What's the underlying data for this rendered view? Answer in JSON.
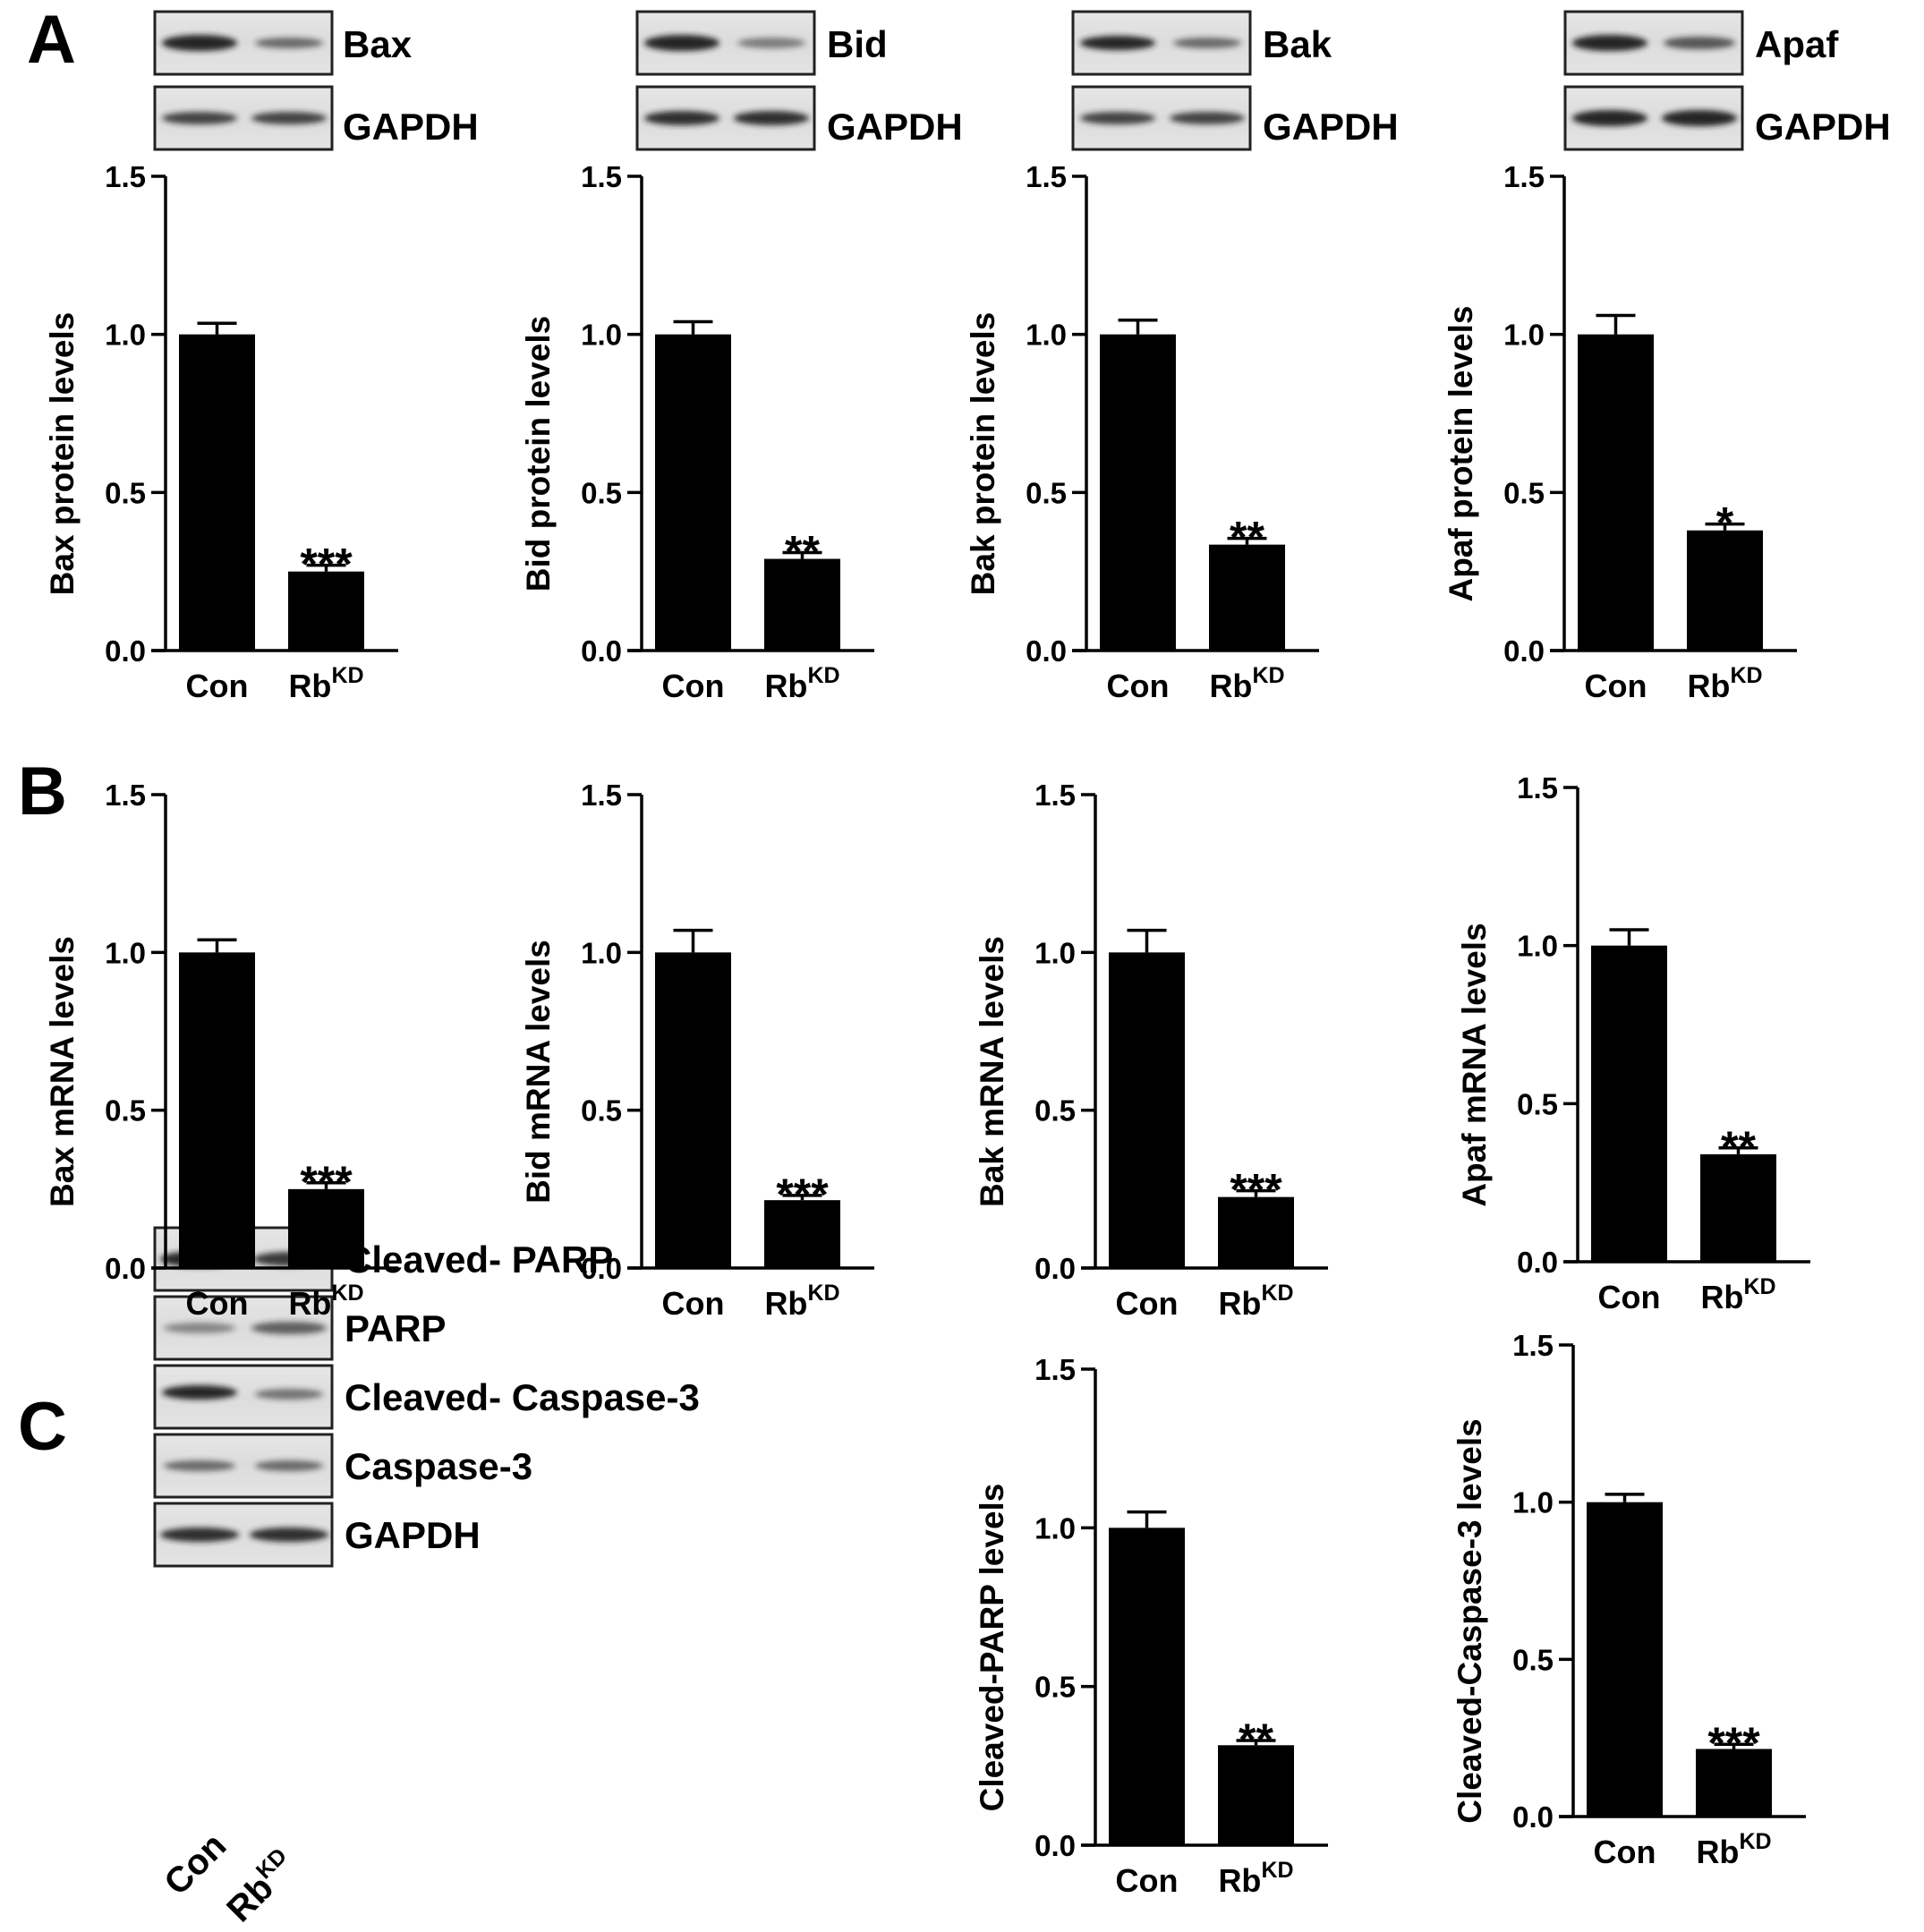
{
  "panel_letters": [
    "A",
    "B",
    "C"
  ],
  "blot_pairs": [
    {
      "target": "Bax",
      "loading": "GAPDH"
    },
    {
      "target": "Bid",
      "loading": "GAPDH"
    },
    {
      "target": "Bak",
      "loading": "GAPDH"
    },
    {
      "target": "Apaf",
      "loading": "GAPDH"
    }
  ],
  "blot_stack_c": {
    "rows": [
      "Cleaved- PARP",
      "PARP",
      "Cleaved- Caspase-3",
      "Caspase-3",
      "GAPDH"
    ],
    "lanes": [
      {
        "main": "Con",
        "sup": ""
      },
      {
        "main": "Rb",
        "sup": "KD"
      }
    ]
  },
  "chart_data": [
    {
      "id": "A1",
      "type": "bar",
      "categories": [
        {
          "main": "Con",
          "sup": ""
        },
        {
          "main": "Rb",
          "sup": "KD"
        }
      ],
      "values": [
        1.0,
        0.25
      ],
      "errors": [
        0.035,
        0.02
      ],
      "significance": [
        "",
        "***"
      ],
      "ylabel": "Bax protein levels",
      "ylim": [
        0,
        1.5
      ],
      "yticks": [
        "0.0",
        "0.5",
        "1.0",
        "1.5"
      ]
    },
    {
      "id": "A2",
      "type": "bar",
      "categories": [
        {
          "main": "Con",
          "sup": ""
        },
        {
          "main": "Rb",
          "sup": "KD"
        }
      ],
      "values": [
        1.0,
        0.29
      ],
      "errors": [
        0.04,
        0.02
      ],
      "significance": [
        "",
        "**"
      ],
      "ylabel": "Bid protein levels",
      "ylim": [
        0,
        1.5
      ],
      "yticks": [
        "0.0",
        "0.5",
        "1.0",
        "1.5"
      ]
    },
    {
      "id": "A3",
      "type": "bar",
      "categories": [
        {
          "main": "Con",
          "sup": ""
        },
        {
          "main": "Rb",
          "sup": "KD"
        }
      ],
      "values": [
        1.0,
        0.335
      ],
      "errors": [
        0.045,
        0.02
      ],
      "significance": [
        "",
        "**"
      ],
      "ylabel": "Bak protein levels",
      "ylim": [
        0,
        1.5
      ],
      "yticks": [
        "0.0",
        "0.5",
        "1.0",
        "1.5"
      ]
    },
    {
      "id": "A4",
      "type": "bar",
      "categories": [
        {
          "main": "Con",
          "sup": ""
        },
        {
          "main": "Rb",
          "sup": "KD"
        }
      ],
      "values": [
        1.0,
        0.38
      ],
      "errors": [
        0.06,
        0.02
      ],
      "significance": [
        "",
        "*"
      ],
      "ylabel": "Apaf protein levels",
      "ylim": [
        0,
        1.5
      ],
      "yticks": [
        "0.0",
        "0.5",
        "1.0",
        "1.5"
      ]
    },
    {
      "id": "B1",
      "type": "bar",
      "categories": [
        {
          "main": "Con",
          "sup": ""
        },
        {
          "main": "Rb",
          "sup": "KD"
        }
      ],
      "values": [
        1.0,
        0.25
      ],
      "errors": [
        0.04,
        0.02
      ],
      "significance": [
        "",
        "***"
      ],
      "ylabel": "Bax mRNA levels",
      "ylim": [
        0,
        1.5
      ],
      "yticks": [
        "0.0",
        "0.5",
        "1.0",
        "1.5"
      ]
    },
    {
      "id": "B2",
      "type": "bar",
      "categories": [
        {
          "main": "Con",
          "sup": ""
        },
        {
          "main": "Rb",
          "sup": "KD"
        }
      ],
      "values": [
        1.0,
        0.215
      ],
      "errors": [
        0.07,
        0.015
      ],
      "significance": [
        "",
        "***"
      ],
      "ylabel": "Bid mRNA levels",
      "ylim": [
        0,
        1.5
      ],
      "yticks": [
        "0.0",
        "0.5",
        "1.0",
        "1.5"
      ]
    },
    {
      "id": "B3",
      "type": "bar",
      "categories": [
        {
          "main": "Con",
          "sup": ""
        },
        {
          "main": "Rb",
          "sup": "KD"
        }
      ],
      "values": [
        1.0,
        0.225
      ],
      "errors": [
        0.07,
        0.02
      ],
      "significance": [
        "",
        "***"
      ],
      "ylabel": "Bak mRNA levels",
      "ylim": [
        0,
        1.5
      ],
      "yticks": [
        "0.0",
        "0.5",
        "1.0",
        "1.5"
      ]
    },
    {
      "id": "B4",
      "type": "bar",
      "categories": [
        {
          "main": "Con",
          "sup": ""
        },
        {
          "main": "Rb",
          "sup": "KD"
        }
      ],
      "values": [
        1.0,
        0.34
      ],
      "errors": [
        0.05,
        0.02
      ],
      "significance": [
        "",
        "**"
      ],
      "ylabel": "Apaf mRNA levels",
      "ylim": [
        0,
        1.5
      ],
      "yticks": [
        "0.0",
        "0.5",
        "1.0",
        "1.5"
      ]
    },
    {
      "id": "C1",
      "type": "bar",
      "categories": [
        {
          "main": "Con",
          "sup": ""
        },
        {
          "main": "Rb",
          "sup": "KD"
        }
      ],
      "values": [
        1.0,
        0.315
      ],
      "errors": [
        0.05,
        0.015
      ],
      "significance": [
        "",
        "**"
      ],
      "ylabel": "Cleaved-PARP levels",
      "ylim": [
        0,
        1.5
      ],
      "yticks": [
        "0.0",
        "0.5",
        "1.0",
        "1.5"
      ]
    },
    {
      "id": "C2",
      "type": "bar",
      "categories": [
        {
          "main": "Con",
          "sup": ""
        },
        {
          "main": "Rb",
          "sup": "KD"
        }
      ],
      "values": [
        1.0,
        0.215
      ],
      "errors": [
        0.025,
        0.015
      ],
      "significance": [
        "",
        "***"
      ],
      "ylabel": "Cleaved-Caspase-3 levels",
      "ylim": [
        0,
        1.5
      ],
      "yticks": [
        "0.0",
        "0.5",
        "1.0",
        "1.5"
      ]
    }
  ]
}
